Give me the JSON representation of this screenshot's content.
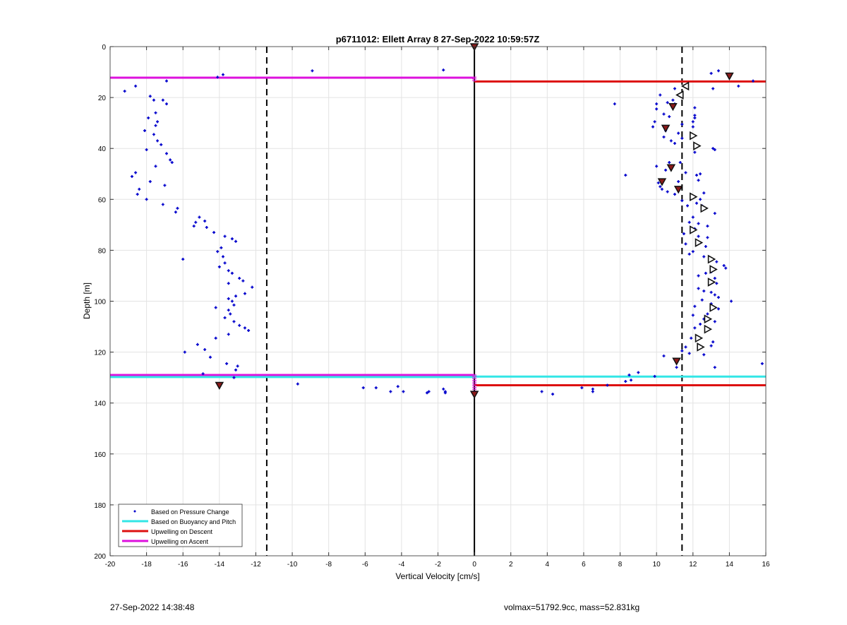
{
  "chart_data": {
    "type": "scatter",
    "title": "p6711012: Ellett Array 8 27-Sep-2022 10:59:57Z",
    "xlabel": "Vertical Velocity [cm/s]",
    "ylabel": "Depth [m]",
    "xlim": [
      -20,
      16
    ],
    "ylim": [
      0,
      200
    ],
    "y_reversed": true,
    "grid": true,
    "xticks": [
      -20,
      -18,
      -16,
      -14,
      -12,
      -10,
      -8,
      -6,
      -4,
      -2,
      0,
      2,
      4,
      6,
      8,
      10,
      12,
      14,
      16
    ],
    "yticks": [
      0,
      20,
      40,
      60,
      80,
      100,
      120,
      140,
      160,
      180,
      200
    ],
    "legend_position": "bottom-left",
    "legend": [
      {
        "label": "Based on Pressure Change",
        "color": "#0000cc"
      },
      {
        "label": "Based on Buoyancy and Pitch",
        "color": "#33e6e6"
      },
      {
        "label": "Upwelling on Descent",
        "color": "#dd1111"
      },
      {
        "label": "Upwelling on Ascent",
        "color": "#dd11dd"
      }
    ],
    "hlines": [
      {
        "series": "Upwelling on Ascent",
        "depth": 12.2,
        "x": [
          -20,
          0
        ],
        "color": "#dd11dd"
      },
      {
        "series": "Upwelling on Ascent",
        "depth": 129.0,
        "x": [
          -20,
          0
        ],
        "color": "#dd11dd"
      },
      {
        "series": "Based on Buoyancy and Pitch",
        "depth": 129.8,
        "x": [
          -20,
          0
        ],
        "color": "#33e6e6"
      },
      {
        "series": "Based on Buoyancy and Pitch",
        "depth": 129.6,
        "x": [
          0,
          16
        ],
        "color": "#33e6e6"
      },
      {
        "series": "Upwelling on Descent",
        "depth": 13.7,
        "x": [
          0,
          16
        ],
        "color": "#dd1111"
      },
      {
        "series": "Upwelling on Descent",
        "depth": 133.0,
        "x": [
          0,
          16
        ],
        "color": "#dd1111"
      }
    ],
    "dashed_vlines": [
      -11.4,
      11.4
    ],
    "zero_line": 0,
    "pressure_change_points": [
      [
        -19.2,
        17.5
      ],
      [
        -18.6,
        15.5
      ],
      [
        -17.8,
        19.5
      ],
      [
        -17.6,
        21
      ],
      [
        -17.1,
        21
      ],
      [
        -16.9,
        22.5
      ],
      [
        -17.5,
        26
      ],
      [
        -17.9,
        28
      ],
      [
        -17.4,
        29.5
      ],
      [
        -17.5,
        31
      ],
      [
        -18.1,
        33
      ],
      [
        -17.6,
        34.5
      ],
      [
        -17.4,
        37
      ],
      [
        -17.2,
        38.5
      ],
      [
        -18.0,
        40.5
      ],
      [
        -16.9,
        42
      ],
      [
        -16.7,
        44.5
      ],
      [
        -16.6,
        45.5
      ],
      [
        -17.5,
        47
      ],
      [
        -18.6,
        49.5
      ],
      [
        -18.8,
        51
      ],
      [
        -17.8,
        53
      ],
      [
        -17.0,
        54.5
      ],
      [
        -18.4,
        56
      ],
      [
        -18.5,
        58
      ],
      [
        -18.0,
        60
      ],
      [
        -17.1,
        62
      ],
      [
        -16.3,
        63.5
      ],
      [
        -16.4,
        65
      ],
      [
        -15.1,
        67
      ],
      [
        -14.8,
        68.5
      ],
      [
        -15.3,
        69
      ],
      [
        -15.4,
        70.5
      ],
      [
        -14.7,
        71
      ],
      [
        -14.3,
        73
      ],
      [
        -13.7,
        74.5
      ],
      [
        -13.3,
        75.5
      ],
      [
        -13.1,
        76.5
      ],
      [
        -13.9,
        79
      ],
      [
        -14.1,
        80.5
      ],
      [
        -13.8,
        82.5
      ],
      [
        -16.0,
        83.5
      ],
      [
        -13.7,
        85
      ],
      [
        -14.0,
        86.5
      ],
      [
        -13.5,
        88
      ],
      [
        -13.3,
        89
      ],
      [
        -12.9,
        91
      ],
      [
        -12.7,
        92
      ],
      [
        -13.5,
        93
      ],
      [
        -12.2,
        94.5
      ],
      [
        -12.6,
        97
      ],
      [
        -13.1,
        98
      ],
      [
        -13.5,
        99
      ],
      [
        -13.3,
        100
      ],
      [
        -13.2,
        101.5
      ],
      [
        -14.2,
        102.5
      ],
      [
        -13.5,
        103.5
      ],
      [
        -13.4,
        105
      ],
      [
        -13.7,
        106.5
      ],
      [
        -13.2,
        108
      ],
      [
        -12.9,
        109.5
      ],
      [
        -12.6,
        110.5
      ],
      [
        -12.4,
        111.5
      ],
      [
        -13.5,
        113
      ],
      [
        -14.2,
        114.5
      ],
      [
        -15.2,
        117
      ],
      [
        -14.8,
        119
      ],
      [
        -15.9,
        120
      ],
      [
        -14.5,
        122
      ],
      [
        -13.6,
        124.5
      ],
      [
        -13.0,
        125.5
      ],
      [
        -13.1,
        127
      ],
      [
        -14.9,
        128.5
      ],
      [
        -13.2,
        130
      ],
      [
        -13.8,
        11
      ],
      [
        -14.1,
        12
      ],
      [
        -8.9,
        9.5
      ],
      [
        -1.7,
        9.2
      ],
      [
        -16.9,
        13.5
      ],
      [
        -9.7,
        132.5
      ],
      [
        -6.1,
        134
      ],
      [
        -5.4,
        134
      ],
      [
        -4.6,
        135.5
      ],
      [
        -4.2,
        133.5
      ],
      [
        -3.9,
        135.5
      ],
      [
        -2.6,
        136
      ],
      [
        -2.5,
        135.5
      ],
      [
        -1.7,
        134.5
      ],
      [
        -1.6,
        135.5
      ],
      [
        -1.6,
        136
      ],
      [
        3.7,
        135.5
      ],
      [
        4.3,
        136.5
      ],
      [
        5.9,
        134
      ],
      [
        6.5,
        134.5
      ],
      [
        6.5,
        135.5
      ],
      [
        7.3,
        133
      ],
      [
        8.3,
        131.5
      ],
      [
        8.5,
        129
      ],
      [
        8.6,
        131
      ],
      [
        9.0,
        128
      ],
      [
        9.9,
        129.5
      ],
      [
        10.4,
        121.5
      ],
      [
        11.1,
        126
      ],
      [
        15.8,
        124.5
      ],
      [
        13.2,
        126
      ],
      [
        13.0,
        10.5
      ],
      [
        13.4,
        9.5
      ],
      [
        14.5,
        15.5
      ],
      [
        15.3,
        13.5
      ],
      [
        13.1,
        16.5
      ],
      [
        11.0,
        16.5
      ],
      [
        10.2,
        19
      ],
      [
        10.0,
        22.5
      ],
      [
        10.6,
        22
      ],
      [
        10.9,
        21
      ],
      [
        11.0,
        22.5
      ],
      [
        10.0,
        24.5
      ],
      [
        10.4,
        26.5
      ],
      [
        9.9,
        29.5
      ],
      [
        10.7,
        27.5
      ],
      [
        11.4,
        30.5
      ],
      [
        12.1,
        24
      ],
      [
        12.1,
        27
      ],
      [
        12.1,
        28
      ],
      [
        12.0,
        29.5
      ],
      [
        12.0,
        31.5
      ],
      [
        9.8,
        31.5
      ],
      [
        10.5,
        33
      ],
      [
        10.4,
        35.5
      ],
      [
        10.8,
        37
      ],
      [
        11.0,
        38
      ],
      [
        11.4,
        36
      ],
      [
        11.2,
        34
      ],
      [
        7.7,
        22.5
      ],
      [
        12.1,
        41.5
      ],
      [
        13.1,
        40
      ],
      [
        13.2,
        40.5
      ],
      [
        10.7,
        45.5
      ],
      [
        10.0,
        47
      ],
      [
        10.5,
        48.5
      ],
      [
        11.3,
        45.5
      ],
      [
        11.6,
        49.5
      ],
      [
        12.2,
        50.5
      ],
      [
        12.4,
        50
      ],
      [
        8.3,
        50.5
      ],
      [
        12.3,
        52.5
      ],
      [
        10.1,
        53.5
      ],
      [
        10.2,
        55
      ],
      [
        10.3,
        56
      ],
      [
        10.6,
        57
      ],
      [
        11.0,
        58
      ],
      [
        11.2,
        53
      ],
      [
        11.4,
        60.5
      ],
      [
        11.7,
        62.5
      ],
      [
        12.6,
        57.5
      ],
      [
        12.4,
        60
      ],
      [
        12.2,
        61.5
      ],
      [
        12.5,
        62.5
      ],
      [
        13.2,
        65.5
      ],
      [
        12.0,
        67
      ],
      [
        11.8,
        69
      ],
      [
        12.3,
        69.5
      ],
      [
        12.8,
        70.5
      ],
      [
        12.1,
        71.5
      ],
      [
        11.5,
        73.5
      ],
      [
        12.3,
        74.5
      ],
      [
        12.8,
        75
      ],
      [
        11.6,
        77.5
      ],
      [
        12.7,
        78.5
      ],
      [
        12.0,
        80.5
      ],
      [
        11.8,
        81.5
      ],
      [
        12.6,
        82.5
      ],
      [
        12.9,
        83
      ],
      [
        13.3,
        84.5
      ],
      [
        13.7,
        86
      ],
      [
        13.8,
        87
      ],
      [
        13.0,
        88.5
      ],
      [
        12.7,
        89
      ],
      [
        12.3,
        90
      ],
      [
        13.2,
        91
      ],
      [
        13.3,
        93
      ],
      [
        12.3,
        95
      ],
      [
        12.6,
        96
      ],
      [
        13.0,
        96.5
      ],
      [
        13.2,
        97.5
      ],
      [
        13.4,
        98.5
      ],
      [
        12.5,
        99.5
      ],
      [
        14.1,
        100
      ],
      [
        13.0,
        101
      ],
      [
        12.1,
        102
      ],
      [
        13.4,
        103
      ],
      [
        12.8,
        105
      ],
      [
        12.0,
        105.5
      ],
      [
        12.6,
        107
      ],
      [
        13.2,
        108
      ],
      [
        12.4,
        109
      ],
      [
        12.1,
        110.5
      ],
      [
        11.9,
        114.5
      ],
      [
        11.6,
        118
      ],
      [
        11.4,
        119.5
      ],
      [
        11.8,
        120.5
      ],
      [
        13.1,
        116
      ],
      [
        13.0,
        117.5
      ],
      [
        12.6,
        121
      ]
    ],
    "filled_markers": [
      [
        14.0,
        11.5
      ],
      [
        10.9,
        23.5
      ],
      [
        10.5,
        32
      ],
      [
        10.8,
        47.5
      ],
      [
        10.3,
        53
      ],
      [
        11.2,
        56
      ],
      [
        11.1,
        123.5
      ],
      [
        -14,
        133
      ],
      [
        0,
        0
      ],
      [
        0,
        136.5
      ]
    ],
    "left_triangles": [
      [
        11.6,
        15.5
      ],
      [
        11.3,
        19
      ]
    ],
    "right_triangles": [
      [
        12.0,
        35
      ],
      [
        12.2,
        39
      ],
      [
        12.0,
        59
      ],
      [
        12.6,
        63.5
      ],
      [
        12.0,
        72
      ],
      [
        12.3,
        77
      ],
      [
        13.0,
        83.5
      ],
      [
        13.1,
        87.5
      ],
      [
        13.0,
        92.5
      ],
      [
        13.1,
        102.5
      ],
      [
        12.8,
        107
      ],
      [
        12.8,
        111
      ],
      [
        12.3,
        114.5
      ],
      [
        12.4,
        118
      ]
    ],
    "ascent_zero_ticks": [
      [
        12,
        14
      ],
      [
        129,
        137
      ]
    ]
  },
  "footer": {
    "timestamp": "27-Sep-2022 14:38:48",
    "info": "volmax=51792.9cc, mass=52.831kg"
  }
}
